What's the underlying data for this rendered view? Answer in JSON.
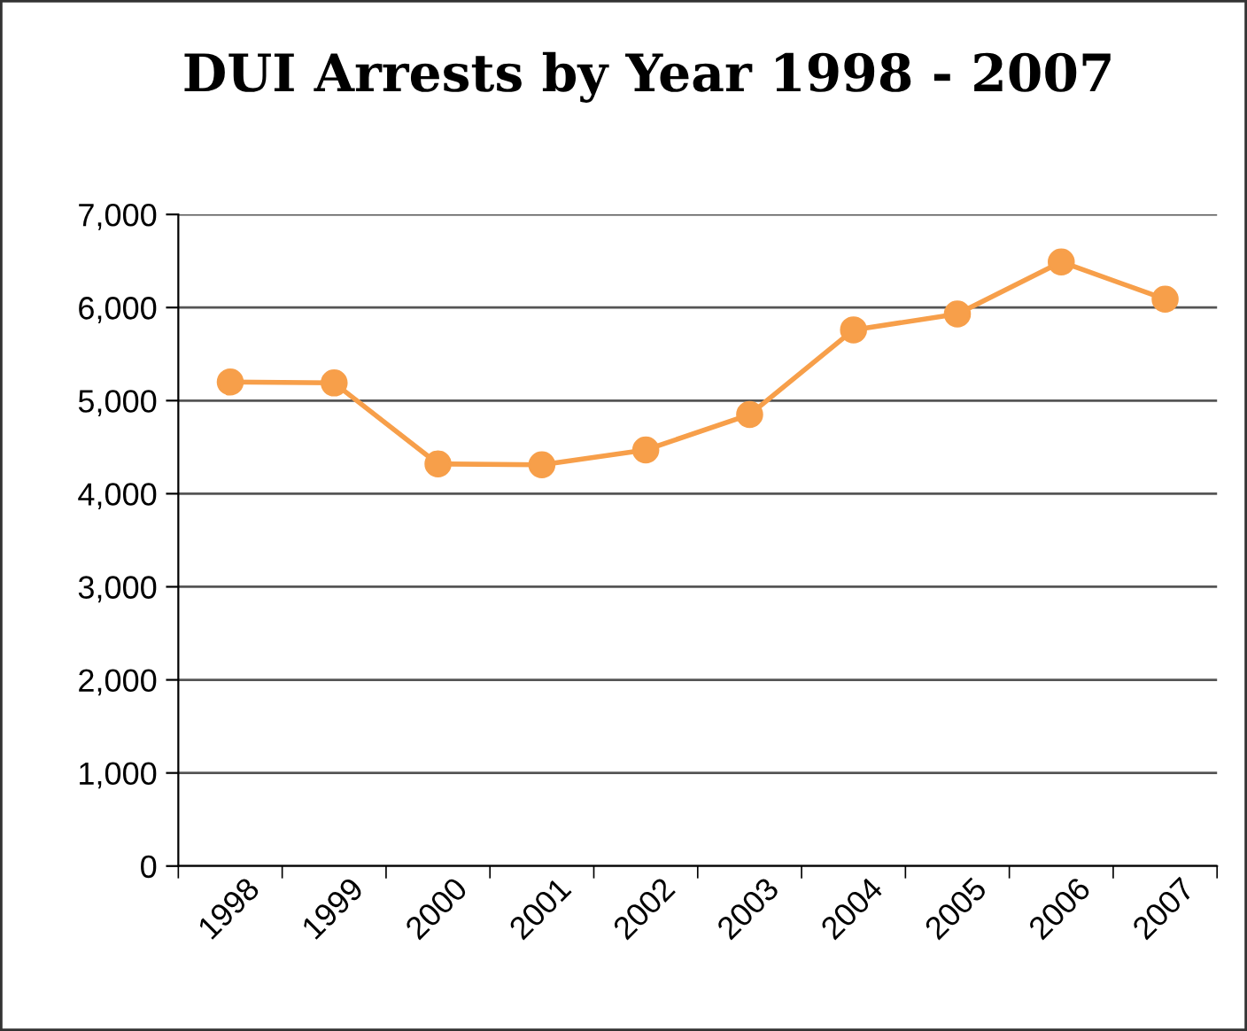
{
  "chart_data": {
    "type": "line",
    "title": "DUI Arrests by Year 1998 - 2007",
    "categories": [
      "1998",
      "1999",
      "2000",
      "2001",
      "2002",
      "2003",
      "2004",
      "2005",
      "2006",
      "2007"
    ],
    "series": [
      {
        "color": "#f79f4a",
        "values": [
          5200,
          5190,
          4320,
          4310,
          4470,
          4850,
          5760,
          5930,
          6490,
          6090
        ]
      }
    ],
    "ylim": [
      0,
      7000
    ],
    "yticks": [
      {
        "value": 0,
        "label": "0"
      },
      {
        "value": 1000,
        "label": "1,000"
      },
      {
        "value": 2000,
        "label": "2,000"
      },
      {
        "value": 3000,
        "label": "3,000"
      },
      {
        "value": 4000,
        "label": "4,000"
      },
      {
        "value": 5000,
        "label": "5,000"
      },
      {
        "value": 6000,
        "label": "6,000"
      },
      {
        "value": 7000,
        "label": "7,000"
      }
    ],
    "grid": "y",
    "marker": "circle",
    "line_style": "solid",
    "legend": false
  }
}
